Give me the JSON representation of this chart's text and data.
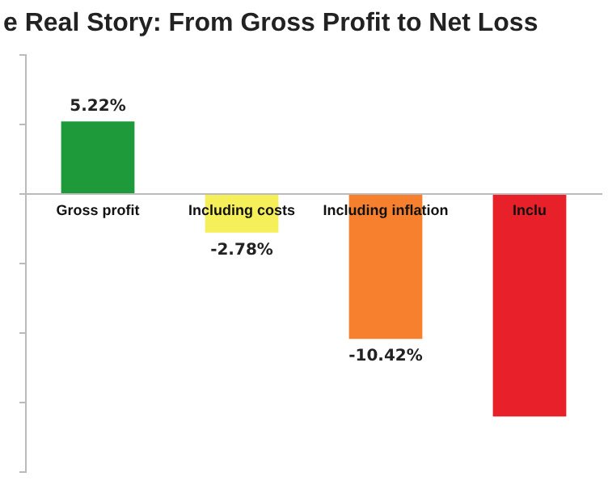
{
  "chart_data": {
    "type": "bar",
    "title": "e Real Story: From Gross Profit to Net Loss",
    "categories": [
      "Gross profit",
      "Including costs",
      "Including inflation",
      "Inclu"
    ],
    "values": [
      5.22,
      -2.78,
      -10.42,
      -16
    ],
    "colors": [
      "#1e9a3a",
      "#f5ef5a",
      "#f7802f",
      "#e8202a"
    ],
    "value_labels": [
      "5.22%",
      "-2.78%",
      "-10.42%",
      null
    ],
    "ylim": [
      -20,
      10
    ],
    "yticks": [
      {
        "value": 10,
        "label": null
      },
      {
        "value": 5,
        "label": null
      },
      {
        "value": 0,
        "label": null
      },
      {
        "value": -5,
        "label": null
      },
      {
        "value": -10,
        "label": null
      },
      {
        "value": -15,
        "label": null
      },
      {
        "value": -20,
        "label": null
      }
    ],
    "tick_labels": "x",
    "grid": false,
    "legend": false
  }
}
